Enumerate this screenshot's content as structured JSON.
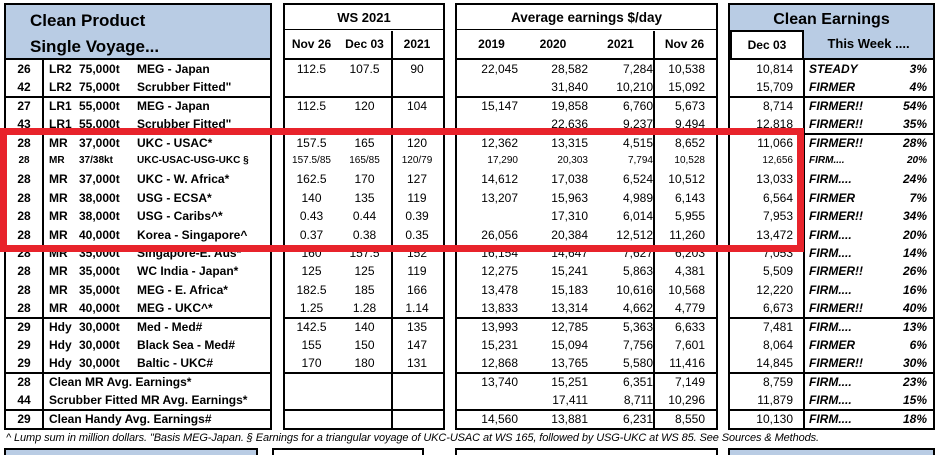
{
  "table_title": {
    "line1": "Clean Product",
    "line2": "Single Voyage..."
  },
  "ws_header": {
    "title": "WS 2021",
    "cols": [
      "Nov 26",
      "Dec 03",
      "2021"
    ]
  },
  "earnings_header": {
    "title": "Average earnings $/day",
    "cols": [
      "2019",
      "2020",
      "2021",
      "Nov 26"
    ]
  },
  "clean_header": {
    "title": "Clean Earnings",
    "col1": "Dec 03",
    "col2": "This Week ...."
  },
  "footnote": "^ Lump sum in million dollars. \"Basis MEG-Japan. § Earnings for a triangular voyage of UKC-USAC at WS 165, followed by USG-UKC at WS 85. See Sources & Methods.",
  "colors": {
    "header_blue": "#b9cce4",
    "highlight_red": "#e8232b",
    "border": "#000000"
  },
  "highlight": {
    "first_row": 5,
    "last_row": 10,
    "covers_columns": "route-number through Dec 03 earnings"
  },
  "rows": [
    {
      "num": "26",
      "vclass": "LR2",
      "vsize": "75,000t",
      "route": "MEG - Japan",
      "ws": [
        "112.5",
        "107.5",
        "90"
      ],
      "earn": [
        "22,045",
        "28,582",
        "7,284",
        "10,538"
      ],
      "dec03": "10,814",
      "trend": "STEADY",
      "pct": "3%"
    },
    {
      "num": "42",
      "vclass": "LR2",
      "vsize": "75,000t",
      "route": "Scrubber Fitted\"",
      "ws": [
        "",
        "",
        ""
      ],
      "earn": [
        "",
        "31,840",
        "10,210",
        "15,092"
      ],
      "dec03": "15,709",
      "trend": "FIRMER",
      "pct": "4%",
      "group_end": true
    },
    {
      "num": "27",
      "vclass": "LR1",
      "vsize": "55,000t",
      "route": "MEG - Japan",
      "ws": [
        "112.5",
        "120",
        "104"
      ],
      "earn": [
        "15,147",
        "19,858",
        "6,760",
        "5,673"
      ],
      "dec03": "8,714",
      "trend": "FIRMER!!",
      "pct": "54%"
    },
    {
      "num": "43",
      "vclass": "LR1",
      "vsize": "55,000t",
      "route": "Scrubber Fitted\"",
      "ws": [
        "",
        "",
        ""
      ],
      "earn": [
        "",
        "22,636",
        "9,237",
        "9,494"
      ],
      "dec03": "12,818",
      "trend": "FIRMER!!",
      "pct": "35%",
      "group_end": true
    },
    {
      "num": "28",
      "vclass": "MR",
      "vsize": "37,000t",
      "route": "UKC - USAC*",
      "ws": [
        "157.5",
        "165",
        "120"
      ],
      "earn": [
        "12,362",
        "13,315",
        "4,515",
        "8,652"
      ],
      "dec03": "11,066",
      "trend": "FIRMER!!",
      "pct": "28%"
    },
    {
      "num": "28",
      "vclass": "MR",
      "vsize": "37/38kt",
      "route": "UKC-USAC-USG-UKC §",
      "ws": [
        "157.5/85",
        "165/85",
        "120/79"
      ],
      "earn": [
        "17,290",
        "20,303",
        "7,794",
        "10,528"
      ],
      "dec03": "12,656",
      "trend": "FIRM....",
      "pct": "20%",
      "small": true
    },
    {
      "num": "28",
      "vclass": "MR",
      "vsize": "37,000t",
      "route": "UKC - W. Africa*",
      "ws": [
        "162.5",
        "170",
        "127"
      ],
      "earn": [
        "14,612",
        "17,038",
        "6,524",
        "10,512"
      ],
      "dec03": "13,033",
      "trend": "FIRM....",
      "pct": "24%"
    },
    {
      "num": "28",
      "vclass": "MR",
      "vsize": "38,000t",
      "route": "USG - ECSA*",
      "ws": [
        "140",
        "135",
        "119"
      ],
      "earn": [
        "13,207",
        "15,963",
        "4,989",
        "6,143"
      ],
      "dec03": "6,564",
      "trend": "FIRMER",
      "pct": "7%"
    },
    {
      "num": "28",
      "vclass": "MR",
      "vsize": "38,000t",
      "route": "USG - Caribs^*",
      "ws": [
        "0.43",
        "0.44",
        "0.39"
      ],
      "earn": [
        "",
        "17,310",
        "6,014",
        "5,955"
      ],
      "dec03": "7,953",
      "trend": "FIRMER!!",
      "pct": "34%"
    },
    {
      "num": "28",
      "vclass": "MR",
      "vsize": "40,000t",
      "route": "Korea - Singapore^",
      "ws": [
        "0.37",
        "0.38",
        "0.35"
      ],
      "earn": [
        "26,056",
        "20,384",
        "12,512",
        "11,260"
      ],
      "dec03": "13,472",
      "trend": "FIRM....",
      "pct": "20%"
    },
    {
      "num": "28",
      "vclass": "MR",
      "vsize": "35,000t",
      "route": "Singapore-E. Aus*",
      "ws": [
        "160",
        "157.5",
        "152"
      ],
      "earn": [
        "16,154",
        "14,647",
        "7,627",
        "6,203"
      ],
      "dec03": "7,053",
      "trend": "FIRM....",
      "pct": "14%"
    },
    {
      "num": "28",
      "vclass": "MR",
      "vsize": "35,000t",
      "route": "WC India - Japan*",
      "ws": [
        "125",
        "125",
        "119"
      ],
      "earn": [
        "12,275",
        "15,241",
        "5,863",
        "4,381"
      ],
      "dec03": "5,509",
      "trend": "FIRMER!!",
      "pct": "26%"
    },
    {
      "num": "28",
      "vclass": "MR",
      "vsize": "35,000t",
      "route": "MEG - E. Africa*",
      "ws": [
        "182.5",
        "185",
        "166"
      ],
      "earn": [
        "13,478",
        "15,183",
        "10,616",
        "10,568"
      ],
      "dec03": "12,220",
      "trend": "FIRM....",
      "pct": "16%"
    },
    {
      "num": "28",
      "vclass": "MR",
      "vsize": "40,000t",
      "route": "MEG - UKC^*",
      "ws": [
        "1.25",
        "1.28",
        "1.14"
      ],
      "earn": [
        "13,833",
        "13,314",
        "4,662",
        "4,779"
      ],
      "dec03": "6,673",
      "trend": "FIRMER!!",
      "pct": "40%",
      "group_end": true
    },
    {
      "num": "29",
      "vclass": "Hdy",
      "vsize": "30,000t",
      "route": "Med - Med#",
      "ws": [
        "142.5",
        "140",
        "135"
      ],
      "earn": [
        "13,993",
        "12,785",
        "5,363",
        "6,633"
      ],
      "dec03": "7,481",
      "trend": "FIRM....",
      "pct": "13%"
    },
    {
      "num": "29",
      "vclass": "Hdy",
      "vsize": "30,000t",
      "route": "Black Sea - Med#",
      "ws": [
        "155",
        "150",
        "147"
      ],
      "earn": [
        "15,231",
        "15,094",
        "7,756",
        "7,601"
      ],
      "dec03": "8,064",
      "trend": "FIRMER",
      "pct": "6%"
    },
    {
      "num": "29",
      "vclass": "Hdy",
      "vsize": "30,000t",
      "route": "Baltic - UKC#",
      "ws": [
        "170",
        "180",
        "131"
      ],
      "earn": [
        "12,868",
        "13,765",
        "5,580",
        "11,416"
      ],
      "dec03": "14,845",
      "trend": "FIRMER!!",
      "pct": "30%",
      "group_end": true
    },
    {
      "num": "28",
      "label": "Clean MR Avg. Earnings*",
      "ws": [
        "",
        "",
        ""
      ],
      "earn": [
        "13,740",
        "15,251",
        "6,351",
        "7,149"
      ],
      "dec03": "8,759",
      "trend": "FIRM....",
      "pct": "23%"
    },
    {
      "num": "44",
      "label": "Scrubber Fitted MR Avg. Earnings*",
      "ws": [
        "",
        "",
        ""
      ],
      "earn": [
        "",
        "17,411",
        "8,711",
        "10,296"
      ],
      "dec03": "11,879",
      "trend": "FIRM....",
      "pct": "15%",
      "group_end": true
    },
    {
      "num": "29",
      "label": "Clean Handy Avg. Earnings#",
      "ws": [
        "",
        "",
        ""
      ],
      "earn": [
        "14,560",
        "13,881",
        "6,231",
        "8,550"
      ],
      "dec03": "10,130",
      "trend": "FIRM....",
      "pct": "18%"
    }
  ]
}
